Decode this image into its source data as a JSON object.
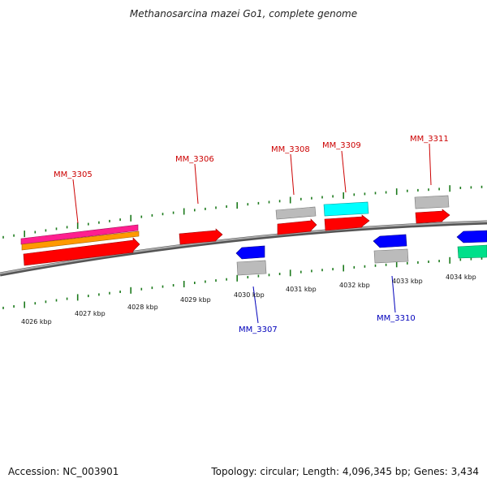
{
  "title": "Methanosarcina mazei Go1, complete genome",
  "footer": {
    "accession": "Accession: NC_003901",
    "summary": "Topology: circular; Length: 4,096,345 bp; Genes: 3,434"
  },
  "colors": {
    "backbone": "#808080",
    "tick": "#1c7a1c",
    "forward_label": "#cc0000",
    "reverse_label": "#0000bb",
    "cds_red": "#ff0000",
    "gene_gray": "#bbbbbb",
    "cyan": "#00ffff",
    "blue": "#0000ff",
    "pink": "#ff1f8f",
    "orange": "#ff9900",
    "green": "#00e08a"
  },
  "scale_labels": [
    "4026 kbp",
    "4027 kbp",
    "4028 kbp",
    "4029 kbp",
    "4030 kbp",
    "4031 kbp",
    "4032 kbp",
    "4033 kbp",
    "4034 kbp"
  ],
  "gene_labels": [
    {
      "name": "MM_3305",
      "strand": "forward"
    },
    {
      "name": "MM_3306",
      "strand": "forward"
    },
    {
      "name": "MM_3307",
      "strand": "reverse"
    },
    {
      "name": "MM_3308",
      "strand": "forward"
    },
    {
      "name": "MM_3309",
      "strand": "forward"
    },
    {
      "name": "MM_3310",
      "strand": "reverse"
    },
    {
      "name": "MM_3311",
      "strand": "forward"
    }
  ]
}
